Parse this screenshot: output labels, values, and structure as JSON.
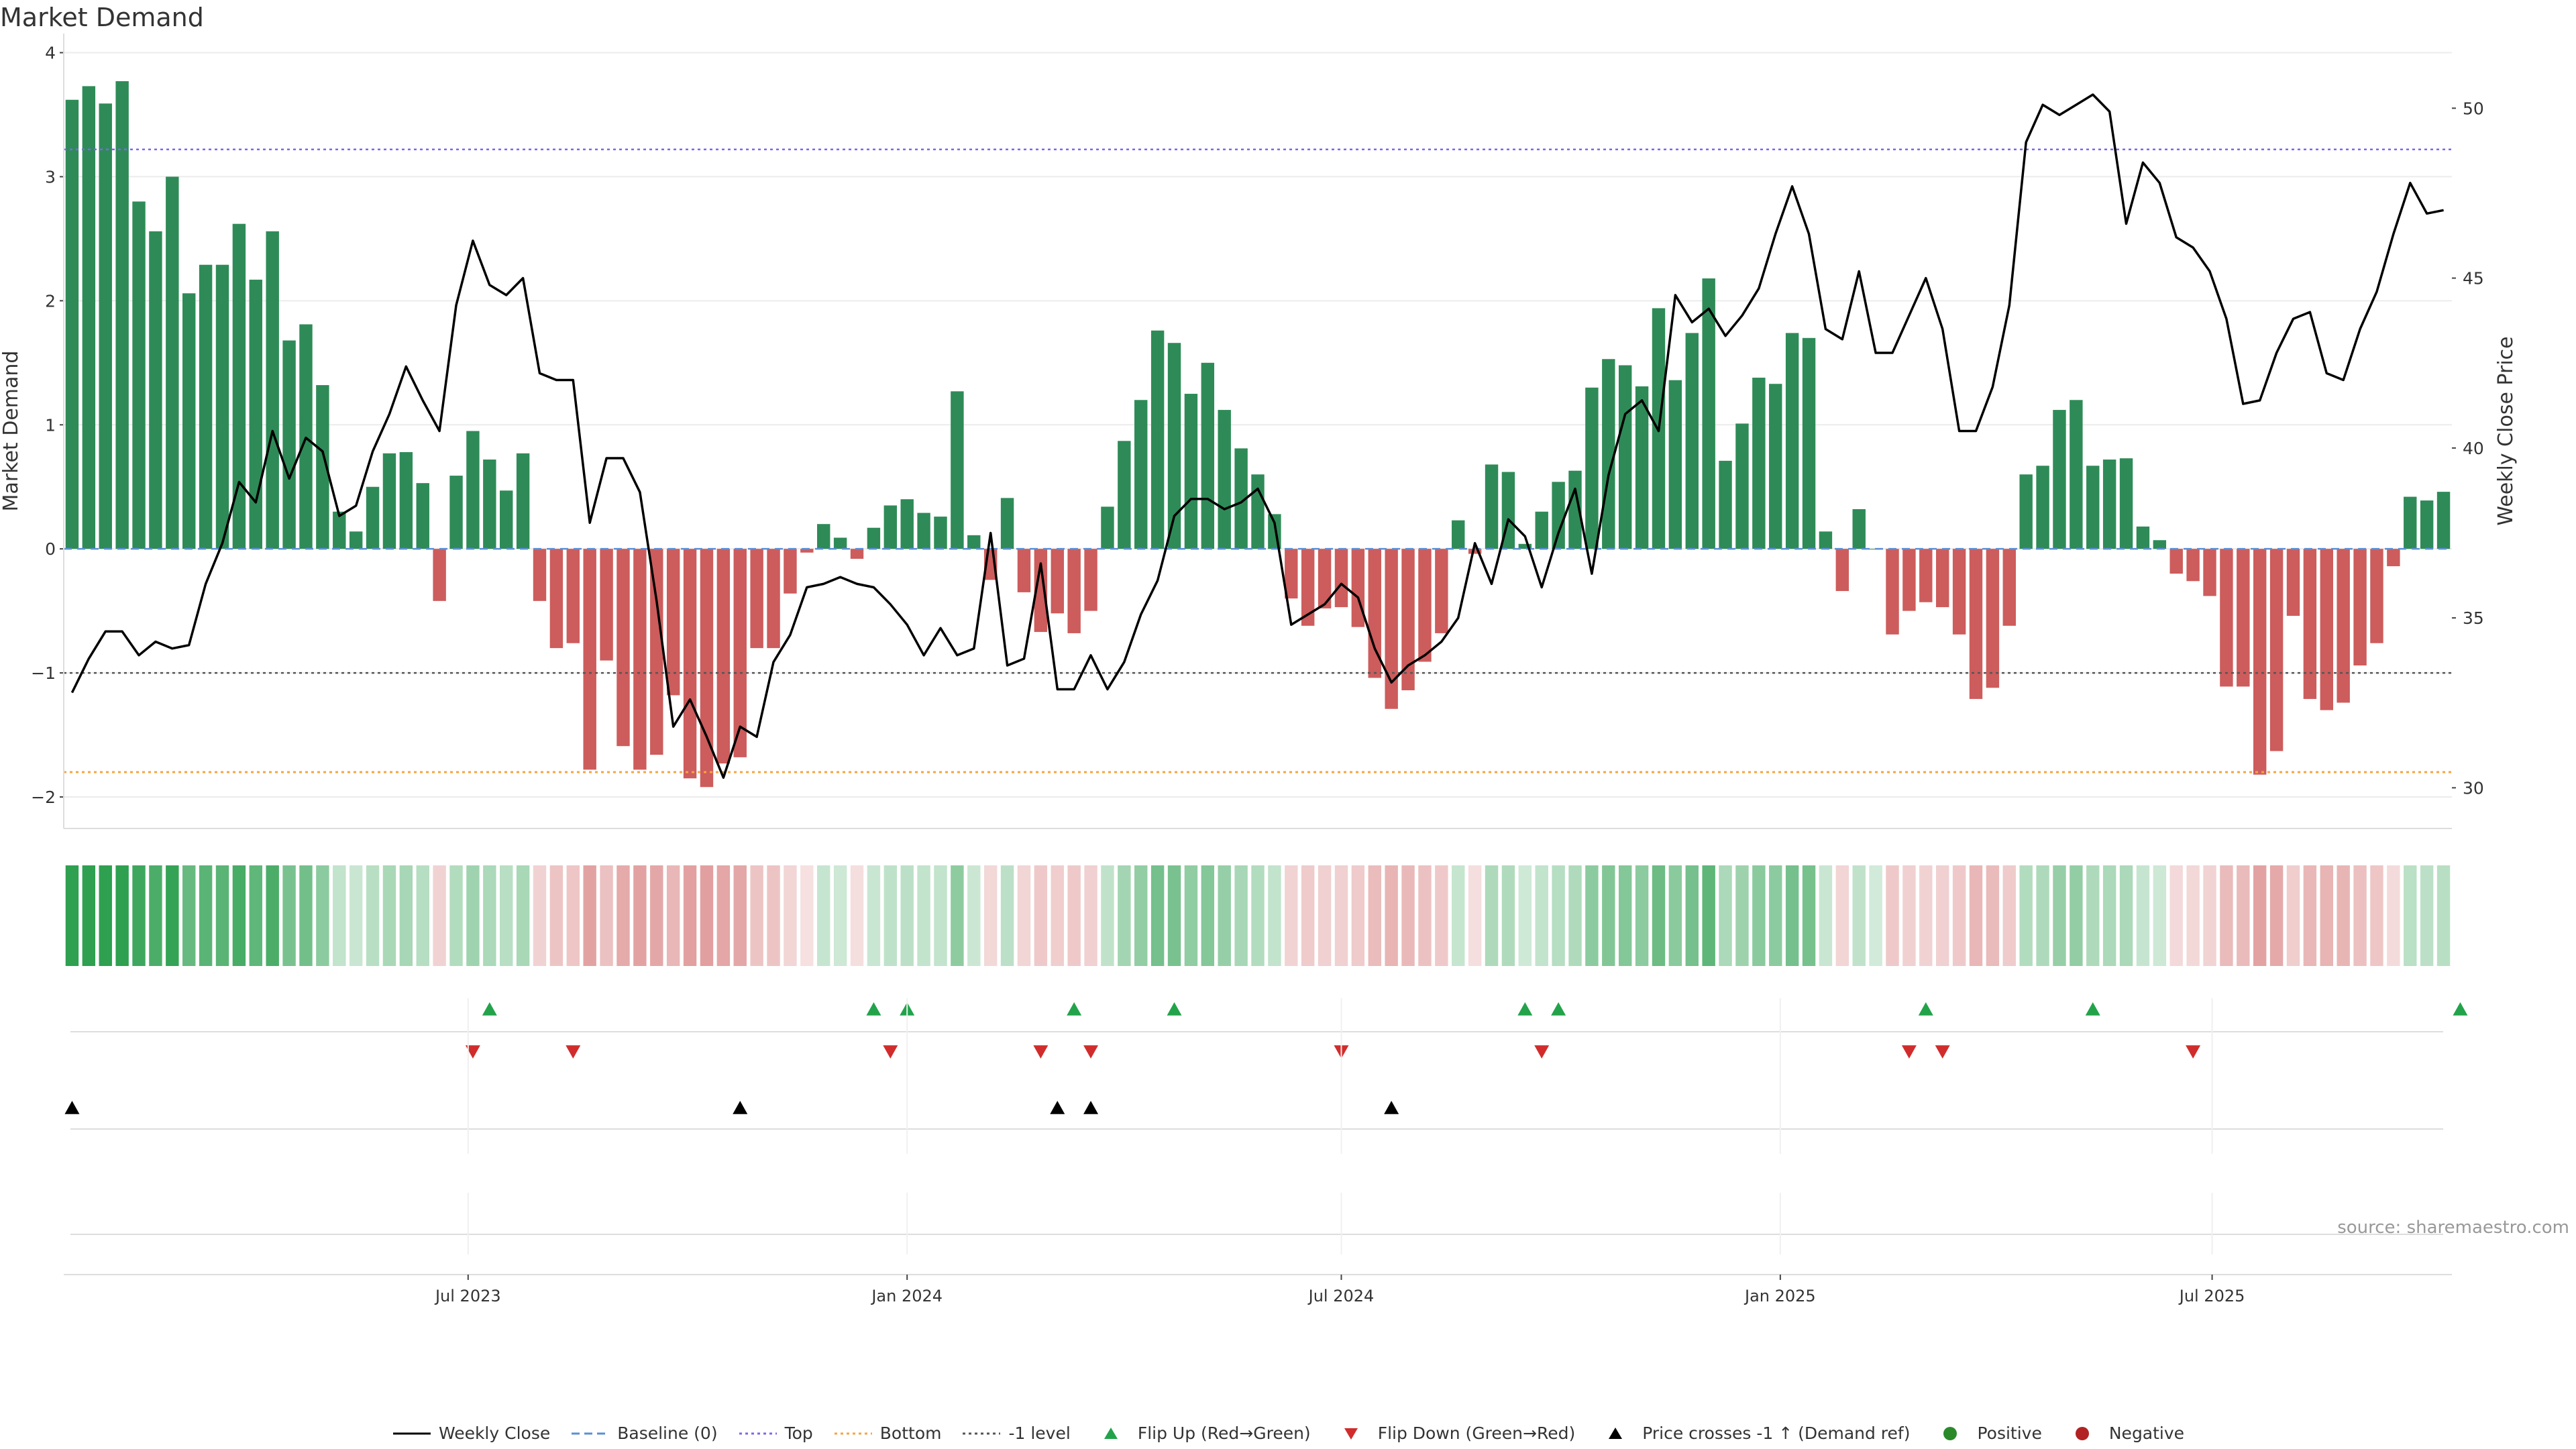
{
  "title": "Market Demand",
  "source": "source: sharemaestro.com",
  "colors": {
    "pos": "#2e8b57",
    "neg": "#cd5c5c",
    "price": "#000000",
    "top": "#7b68ee",
    "bottom": "#f4a640",
    "minus1": "#555555",
    "baseline": "#5b8fd6",
    "flip_up": "#22a34a",
    "flip_down": "#d12c2c",
    "cross": "#000000",
    "positive_dot": "#2a8a2a",
    "negative_dot": "#b22222"
  },
  "chart_data": {
    "type": "bar",
    "start_date": "2023-01-16",
    "x_ticks": [
      "Jul 2023",
      "Jan 2024",
      "Jul 2024",
      "Jan 2025",
      "Jul 2025"
    ],
    "x_tick_dates": [
      "2023-07-01",
      "2024-01-01",
      "2024-07-01",
      "2025-01-01",
      "2025-07-01"
    ],
    "ylabel": "Market Demand",
    "y2label": "Weekly Close Price",
    "ylim": [
      -2.2,
      4.1
    ],
    "yticks": [
      4,
      3,
      2,
      1,
      0,
      -1,
      -2
    ],
    "y2lim": [
      29,
      52
    ],
    "y2ticks": [
      50,
      45,
      40,
      35,
      30
    ],
    "levels": {
      "top": 3.22,
      "bottom": -1.8,
      "minus1": -1.0,
      "baseline": 0
    },
    "demand": [
      3.62,
      3.73,
      3.59,
      3.77,
      2.8,
      2.56,
      3.0,
      2.06,
      2.29,
      2.29,
      2.62,
      2.17,
      2.56,
      1.68,
      1.81,
      1.32,
      0.3,
      0.14,
      0.5,
      0.77,
      0.78,
      0.53,
      -0.42,
      0.59,
      0.95,
      0.72,
      0.47,
      0.77,
      -0.42,
      -0.8,
      -0.76,
      -1.78,
      -0.9,
      -1.59,
      -1.78,
      -1.66,
      -1.18,
      -1.85,
      -1.92,
      -1.73,
      -1.68,
      -0.8,
      -0.8,
      -0.36,
      -0.03,
      0.2,
      0.09,
      -0.08,
      0.17,
      0.35,
      0.4,
      0.29,
      0.26,
      1.27,
      0.11,
      -0.25,
      0.41,
      -0.35,
      -0.67,
      -0.52,
      -0.68,
      -0.5,
      0.34,
      0.87,
      1.2,
      1.76,
      1.66,
      1.25,
      1.5,
      1.12,
      0.81,
      0.6,
      0.28,
      -0.4,
      -0.62,
      -0.48,
      -0.47,
      -0.63,
      -1.04,
      -1.29,
      -1.14,
      -0.91,
      -0.68,
      0.23,
      -0.04,
      0.68,
      0.62,
      0.04,
      0.3,
      0.54,
      0.63,
      1.3,
      1.53,
      1.48,
      1.31,
      1.94,
      1.36,
      1.74,
      2.18,
      0.71,
      1.01,
      1.38,
      1.33,
      1.74,
      1.7,
      0.14,
      -0.34,
      0.32,
      0.0,
      -0.69,
      -0.5,
      -0.43,
      -0.47,
      -0.69,
      -1.21,
      -1.12,
      -0.62,
      0.6,
      0.67,
      1.12,
      1.2,
      0.67,
      0.72,
      0.73,
      0.18,
      0.07,
      -0.2,
      -0.26,
      -0.38,
      -1.11,
      -1.11,
      -1.82,
      -1.63,
      -0.54,
      -1.21,
      -1.3,
      -1.24,
      -0.94,
      -0.76,
      -0.14,
      0.42,
      0.39,
      0.46
    ],
    "price": [
      32.8,
      33.8,
      34.6,
      34.6,
      33.9,
      34.3,
      34.1,
      34.2,
      36.0,
      37.2,
      39.0,
      38.4,
      40.5,
      39.1,
      40.3,
      39.9,
      38.0,
      38.3,
      39.9,
      41.0,
      42.4,
      41.4,
      40.5,
      44.2,
      46.1,
      44.8,
      44.5,
      45.0,
      42.2,
      42.0,
      42.0,
      37.8,
      39.7,
      39.7,
      38.7,
      35.5,
      31.8,
      32.6,
      31.5,
      30.3,
      31.8,
      31.5,
      33.7,
      34.5,
      35.9,
      36.0,
      36.2,
      36.0,
      35.9,
      35.4,
      34.8,
      33.9,
      34.7,
      33.9,
      34.1,
      37.5,
      33.6,
      33.8,
      36.6,
      32.9,
      32.9,
      33.9,
      32.9,
      33.7,
      35.1,
      36.1,
      38.0,
      38.5,
      38.5,
      38.2,
      38.4,
      38.8,
      37.8,
      34.8,
      35.1,
      35.4,
      36.0,
      35.6,
      34.1,
      33.1,
      33.6,
      33.9,
      34.3,
      35.0,
      37.2,
      36.0,
      37.9,
      37.4,
      35.9,
      37.5,
      38.8,
      36.3,
      39.2,
      41.0,
      41.4,
      40.5,
      44.5,
      43.7,
      44.1,
      43.3,
      43.9,
      44.7,
      46.3,
      47.7,
      46.3,
      43.5,
      43.2,
      45.2,
      42.8,
      42.8,
      43.9,
      45.0,
      43.5,
      40.5,
      40.5,
      41.8,
      44.2,
      49.0,
      50.1,
      49.8,
      50.1,
      50.4,
      49.9,
      46.6,
      48.4,
      47.8,
      46.2,
      45.9,
      45.2,
      43.8,
      41.3,
      41.4,
      42.8,
      43.8,
      44.0,
      42.2,
      42.0,
      43.5,
      44.6,
      46.3,
      47.8,
      46.9,
      47.0
    ],
    "flip_up_dates": [
      "2023-07-10",
      "2023-12-18",
      "2024-01-01",
      "2024-03-11",
      "2024-04-22",
      "2024-09-16",
      "2024-09-30",
      "2025-03-03",
      "2025-05-12",
      "2025-10-13"
    ],
    "flip_down_dates": [
      "2023-07-03",
      "2023-08-14",
      "2023-12-25",
      "2024-02-26",
      "2024-03-18",
      "2024-07-01",
      "2024-09-23",
      "2025-02-24",
      "2025-03-10",
      "2025-06-23"
    ],
    "cross_dates": [
      "2023-01-16",
      "2023-10-23",
      "2024-03-04",
      "2024-03-18",
      "2024-07-22"
    ],
    "heat_rows": 1
  },
  "legend": [
    {
      "key": "weekly-close",
      "label": "Weekly Close",
      "kind": "solid-line",
      "color": "#000000"
    },
    {
      "key": "baseline",
      "label": "Baseline (0)",
      "kind": "dash-line",
      "color": "#5b8fd6"
    },
    {
      "key": "top",
      "label": "Top",
      "kind": "dot-line",
      "color": "#7b68ee"
    },
    {
      "key": "bottom",
      "label": "Bottom",
      "kind": "dot-line",
      "color": "#f4a640"
    },
    {
      "key": "minus1",
      "label": "-1 level",
      "kind": "dot-line",
      "color": "#555555"
    },
    {
      "key": "flip-up",
      "label": "Flip Up (Red→Green)",
      "kind": "tri-up",
      "color": "#22a34a"
    },
    {
      "key": "flip-down",
      "label": "Flip Down (Green→Red)",
      "kind": "tri-down",
      "color": "#d12c2c"
    },
    {
      "key": "cross",
      "label": "Price crosses -1 ↑ (Demand ref)",
      "kind": "tri-up",
      "color": "#000000"
    },
    {
      "key": "positive",
      "label": "Positive",
      "kind": "dot",
      "color": "#2a8a2a"
    },
    {
      "key": "negative",
      "label": "Negative",
      "kind": "dot",
      "color": "#b22222"
    }
  ]
}
